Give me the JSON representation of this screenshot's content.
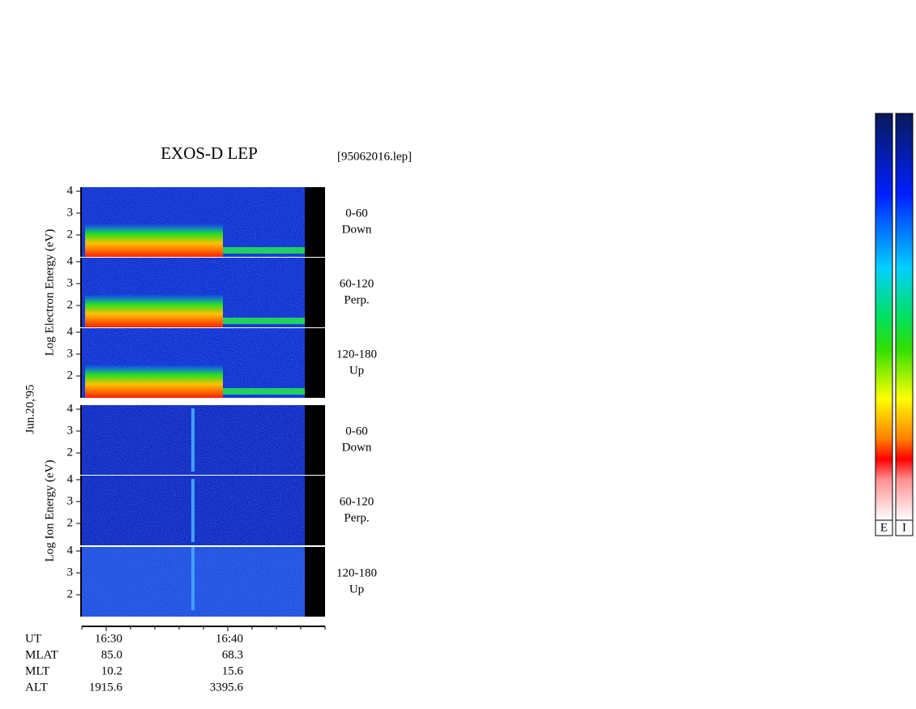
{
  "header": {
    "title": "EXOS-D LEP",
    "file": "[95062016.lep]"
  },
  "date": "Jun.20,'95",
  "groups": [
    {
      "axis_label": "Log Electron Energy (eV)",
      "yticks": [
        2,
        3,
        4
      ],
      "panels": [
        {
          "angle": "0-60",
          "direction": "Down"
        },
        {
          "angle": "60-120",
          "direction": "Perp."
        },
        {
          "angle": "120-180",
          "direction": "Up"
        }
      ]
    },
    {
      "axis_label": "Log Ion Energy (eV)",
      "yticks": [
        2,
        3,
        4
      ],
      "panels": [
        {
          "angle": "0-60",
          "direction": "Down"
        },
        {
          "angle": "60-120",
          "direction": "Perp."
        },
        {
          "angle": "120-180",
          "direction": "Up"
        }
      ]
    }
  ],
  "orbit": {
    "rows": [
      [
        "UT",
        "16:30",
        "16:40"
      ],
      [
        "MLAT",
        "85.0",
        "68.3"
      ],
      [
        "MLT",
        "10.2",
        "15.6"
      ],
      [
        "ALT",
        "1915.6",
        "3395.6"
      ]
    ]
  },
  "colorbars": [
    "E",
    "I"
  ]
}
